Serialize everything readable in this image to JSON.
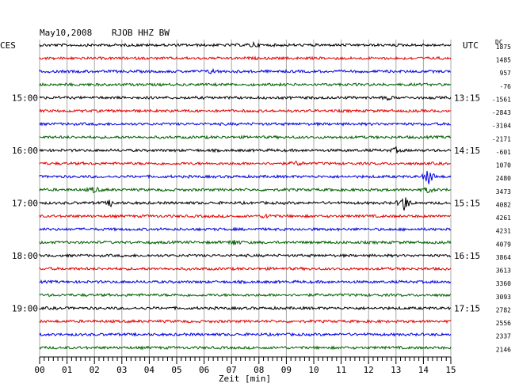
{
  "header": {
    "date": "May10,2008",
    "station": "RJOB HHZ BW",
    "left_tz": "CES",
    "right_tz": "UTC",
    "dc_label": "DC"
  },
  "chart_data": {
    "type": "line",
    "title": "May10,2008   RJOB HHZ BW",
    "xlabel": "Zeit [min]",
    "xlim": [
      0,
      15
    ],
    "x_ticks": [
      "00",
      "01",
      "02",
      "03",
      "04",
      "05",
      "06",
      "07",
      "08",
      "09",
      "10",
      "11",
      "12",
      "13",
      "14",
      "15"
    ],
    "row_colors": [
      "#000000",
      "#e00000",
      "#0000e0",
      "#006000"
    ],
    "left_time_labels": [
      {
        "row": 4,
        "text": "15:00"
      },
      {
        "row": 8,
        "text": "16:00"
      },
      {
        "row": 12,
        "text": "17:00"
      },
      {
        "row": 16,
        "text": "18:00"
      },
      {
        "row": 20,
        "text": "19:00"
      }
    ],
    "right_time_labels": [
      {
        "row": 4,
        "text": "13:15"
      },
      {
        "row": 8,
        "text": "14:15"
      },
      {
        "row": 12,
        "text": "15:15"
      },
      {
        "row": 16,
        "text": "16:15"
      },
      {
        "row": 20,
        "text": "17:15"
      }
    ],
    "dc_offsets": [
      "1875",
      "1485",
      "957",
      "-76",
      "-1561",
      "-2843",
      "-3104",
      "-2171",
      "-601",
      "1070",
      "2480",
      "3473",
      "4082",
      "4261",
      "4231",
      "4079",
      "3864",
      "3613",
      "3360",
      "3093",
      "2782",
      "2556",
      "2337",
      "2146"
    ],
    "events": [
      {
        "row": 0,
        "minute": 7.8,
        "amp": 3
      },
      {
        "row": 2,
        "minute": 6.3,
        "amp": 3
      },
      {
        "row": 4,
        "minute": 12.7,
        "amp": 2
      },
      {
        "row": 8,
        "minute": 13.0,
        "amp": 3
      },
      {
        "row": 9,
        "minute": 9.4,
        "amp": 3
      },
      {
        "row": 10,
        "minute": 14.2,
        "amp": 12
      },
      {
        "row": 11,
        "minute": 2.0,
        "amp": 4
      },
      {
        "row": 11,
        "minute": 14.2,
        "amp": 4
      },
      {
        "row": 12,
        "minute": 13.3,
        "amp": 12
      },
      {
        "row": 12,
        "minute": 2.6,
        "amp": 4
      },
      {
        "row": 13,
        "minute": 8.3,
        "amp": 3
      },
      {
        "row": 15,
        "minute": 7.1,
        "amp": 4
      }
    ]
  }
}
